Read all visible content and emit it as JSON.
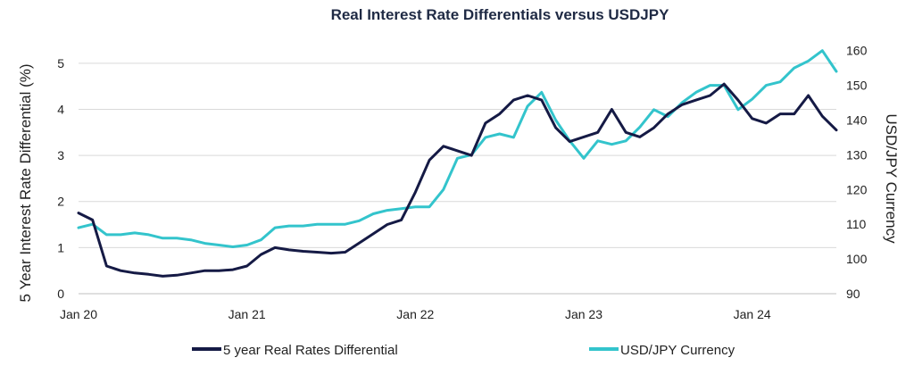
{
  "chart_data": {
    "type": "line",
    "title": "Real Interest Rate Differentials versus USDJPY",
    "xlabel": "",
    "ylabel_left": "5 Year Interest Rate Differential (%)",
    "ylabel_right": "USD/JPY Currency",
    "x_ticks": [
      "Jan 20",
      "Jan 21",
      "Jan 22",
      "Jan 23",
      "Jan 24"
    ],
    "x_range": [
      "2020-01",
      "2024-07"
    ],
    "y_left_ticks": [
      "0",
      "1",
      "2",
      "3",
      "4",
      "5"
    ],
    "y_left_range": [
      0,
      5.5
    ],
    "y_right_ticks": [
      "90",
      "100",
      "110",
      "120",
      "130",
      "140",
      "150",
      "160"
    ],
    "y_right_range": [
      90,
      163
    ],
    "grid": true,
    "legend_position": "bottom",
    "series": [
      {
        "name": "5 year Real Rates Differential",
        "axis": "left",
        "color": "#151a45",
        "x": [
          "2020-01",
          "2020-02",
          "2020-03",
          "2020-04",
          "2020-05",
          "2020-06",
          "2020-07",
          "2020-08",
          "2020-09",
          "2020-10",
          "2020-11",
          "2020-12",
          "2021-01",
          "2021-02",
          "2021-03",
          "2021-04",
          "2021-05",
          "2021-06",
          "2021-07",
          "2021-08",
          "2021-09",
          "2021-10",
          "2021-11",
          "2021-12",
          "2022-01",
          "2022-02",
          "2022-03",
          "2022-04",
          "2022-05",
          "2022-06",
          "2022-07",
          "2022-08",
          "2022-09",
          "2022-10",
          "2022-11",
          "2022-12",
          "2023-01",
          "2023-02",
          "2023-03",
          "2023-04",
          "2023-05",
          "2023-06",
          "2023-07",
          "2023-08",
          "2023-09",
          "2023-10",
          "2023-11",
          "2023-12",
          "2024-01",
          "2024-02",
          "2024-03",
          "2024-04",
          "2024-05",
          "2024-06",
          "2024-07"
        ],
        "values": [
          1.75,
          1.6,
          0.6,
          0.5,
          0.45,
          0.42,
          0.38,
          0.4,
          0.45,
          0.5,
          0.5,
          0.52,
          0.6,
          0.85,
          1.0,
          0.95,
          0.92,
          0.9,
          0.88,
          0.9,
          1.1,
          1.3,
          1.5,
          1.6,
          2.2,
          2.9,
          3.2,
          3.1,
          3.0,
          3.7,
          3.9,
          4.2,
          4.3,
          4.2,
          3.6,
          3.3,
          3.4,
          3.5,
          4.0,
          3.5,
          3.4,
          3.6,
          3.9,
          4.1,
          4.2,
          4.3,
          4.55,
          4.2,
          3.8,
          3.7,
          3.9,
          3.9,
          4.3,
          3.85,
          3.55
        ]
      },
      {
        "name": "USD/JPY Currency",
        "axis": "right",
        "color": "#33c4cc",
        "x": [
          "2020-01",
          "2020-02",
          "2020-03",
          "2020-04",
          "2020-05",
          "2020-06",
          "2020-07",
          "2020-08",
          "2020-09",
          "2020-10",
          "2020-11",
          "2020-12",
          "2021-01",
          "2021-02",
          "2021-03",
          "2021-04",
          "2021-05",
          "2021-06",
          "2021-07",
          "2021-08",
          "2021-09",
          "2021-10",
          "2021-11",
          "2021-12",
          "2022-01",
          "2022-02",
          "2022-03",
          "2022-04",
          "2022-05",
          "2022-06",
          "2022-07",
          "2022-08",
          "2022-09",
          "2022-10",
          "2022-11",
          "2022-12",
          "2023-01",
          "2023-02",
          "2023-03",
          "2023-04",
          "2023-05",
          "2023-06",
          "2023-07",
          "2023-08",
          "2023-09",
          "2023-10",
          "2023-11",
          "2023-12",
          "2024-01",
          "2024-02",
          "2024-03",
          "2024-04",
          "2024-05",
          "2024-06",
          "2024-07"
        ],
        "values": [
          109,
          110,
          107,
          107,
          107.5,
          107,
          106,
          106,
          105.5,
          104.5,
          104,
          103.5,
          104,
          105.5,
          109,
          109.5,
          109.5,
          110,
          110,
          110,
          111,
          113,
          114,
          114.5,
          115,
          115,
          120,
          129,
          130,
          135,
          136,
          135,
          144,
          148,
          140,
          134,
          129,
          134,
          133,
          134,
          138,
          143,
          141,
          145,
          148,
          150,
          150,
          143,
          146,
          150,
          151,
          155,
          157,
          160,
          154
        ]
      }
    ]
  }
}
